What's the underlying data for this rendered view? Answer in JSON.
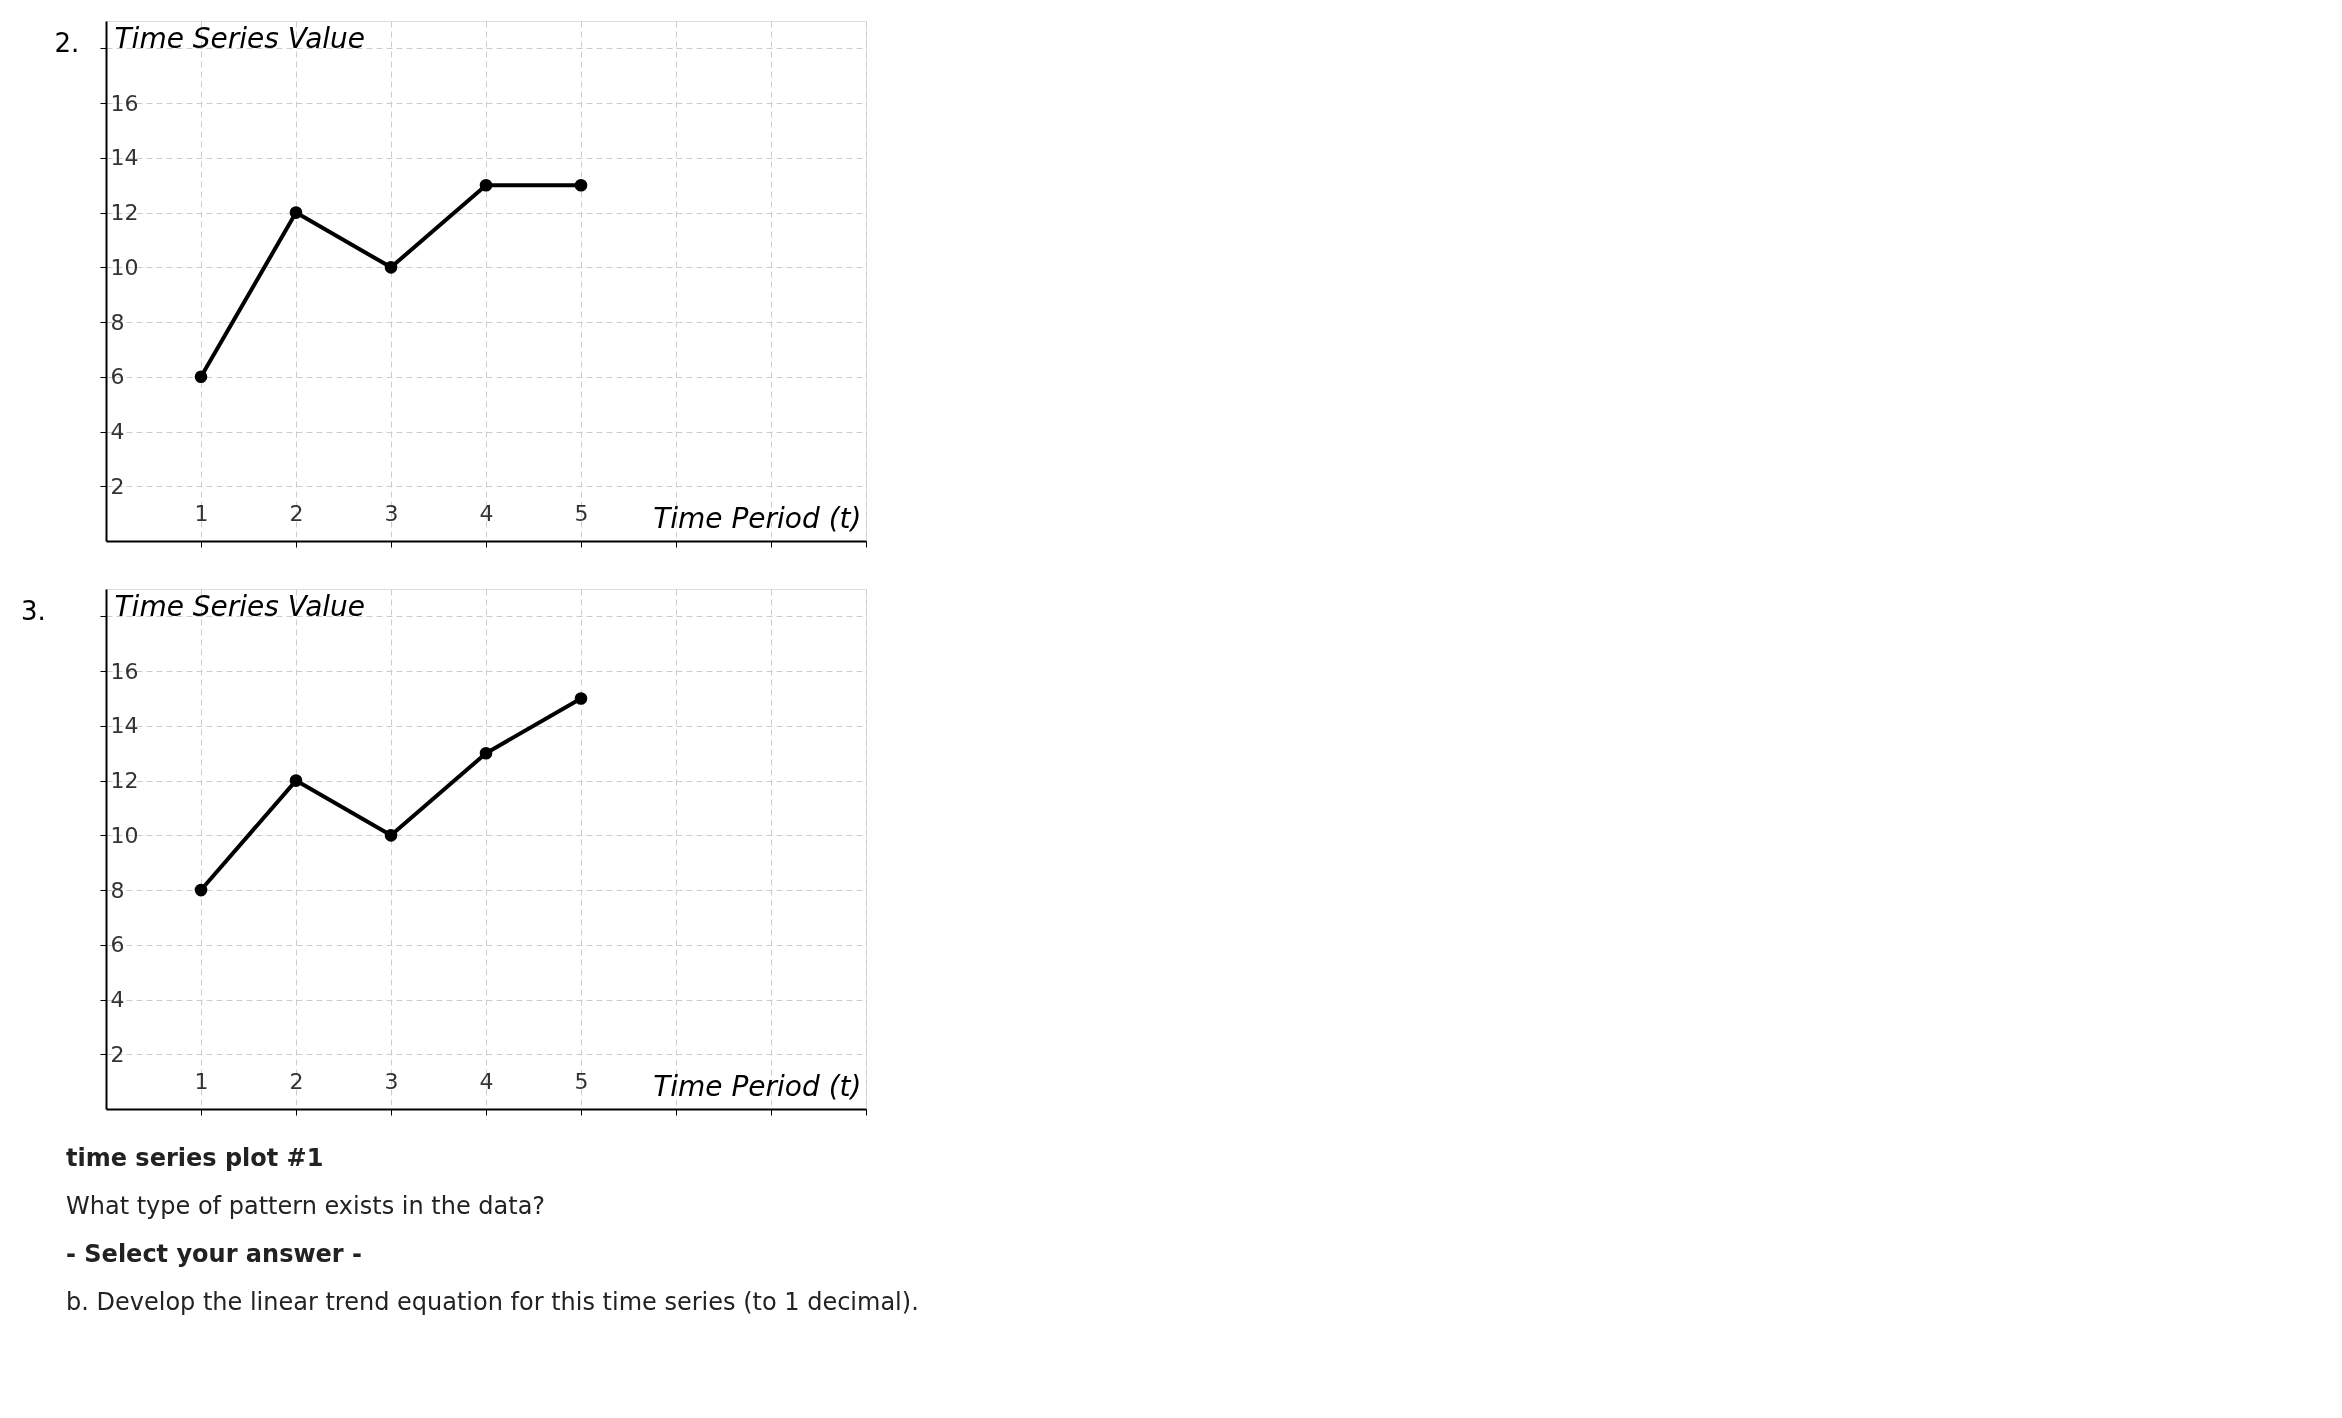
{
  "chart_data": [
    {
      "type": "line",
      "title": "2.",
      "xlabel": "Time Period (t)",
      "ylabel": "Time Series Value",
      "x": [
        1,
        2,
        3,
        4,
        5
      ],
      "series": [
        {
          "color": "#000000",
          "values": [
            6,
            12,
            10,
            13,
            13
          ]
        }
      ],
      "xlim": [
        0,
        8
      ],
      "ylim": [
        0,
        19
      ],
      "xticks": [
        1,
        2,
        3,
        4,
        5,
        {
          "value": 6,
          "label": null
        },
        {
          "value": 7,
          "label": null
        },
        {
          "value": 8,
          "label": null
        }
      ],
      "yticks": [
        2,
        4,
        6,
        8,
        10,
        12,
        14,
        16,
        {
          "value": 18,
          "label": null
        }
      ],
      "grid": true,
      "marker": "circle",
      "line_style": "solid"
    },
    {
      "type": "line",
      "title": "3.",
      "xlabel": "Time Period (t)",
      "ylabel": "Time Series Value",
      "x": [
        1,
        2,
        3,
        4,
        5
      ],
      "series": [
        {
          "color": "#000000",
          "values": [
            8,
            12,
            10,
            13,
            15
          ]
        }
      ],
      "xlim": [
        0,
        8
      ],
      "ylim": [
        0,
        19
      ],
      "xticks": [
        1,
        2,
        3,
        4,
        5,
        {
          "value": 6,
          "label": null
        },
        {
          "value": 7,
          "label": null
        },
        {
          "value": 8,
          "label": null
        }
      ],
      "yticks": [
        2,
        4,
        6,
        8,
        10,
        12,
        14,
        16,
        {
          "value": 18,
          "label": null
        }
      ],
      "grid": true,
      "marker": "circle",
      "line_style": "solid",
      "annotations": [
        "time series plot #1",
        "What type of pattern exists in the data?",
        "- Select your answer -",
        "b. Develop the linear trend equation for this time series (to 1 decimal)."
      ]
    }
  ]
}
